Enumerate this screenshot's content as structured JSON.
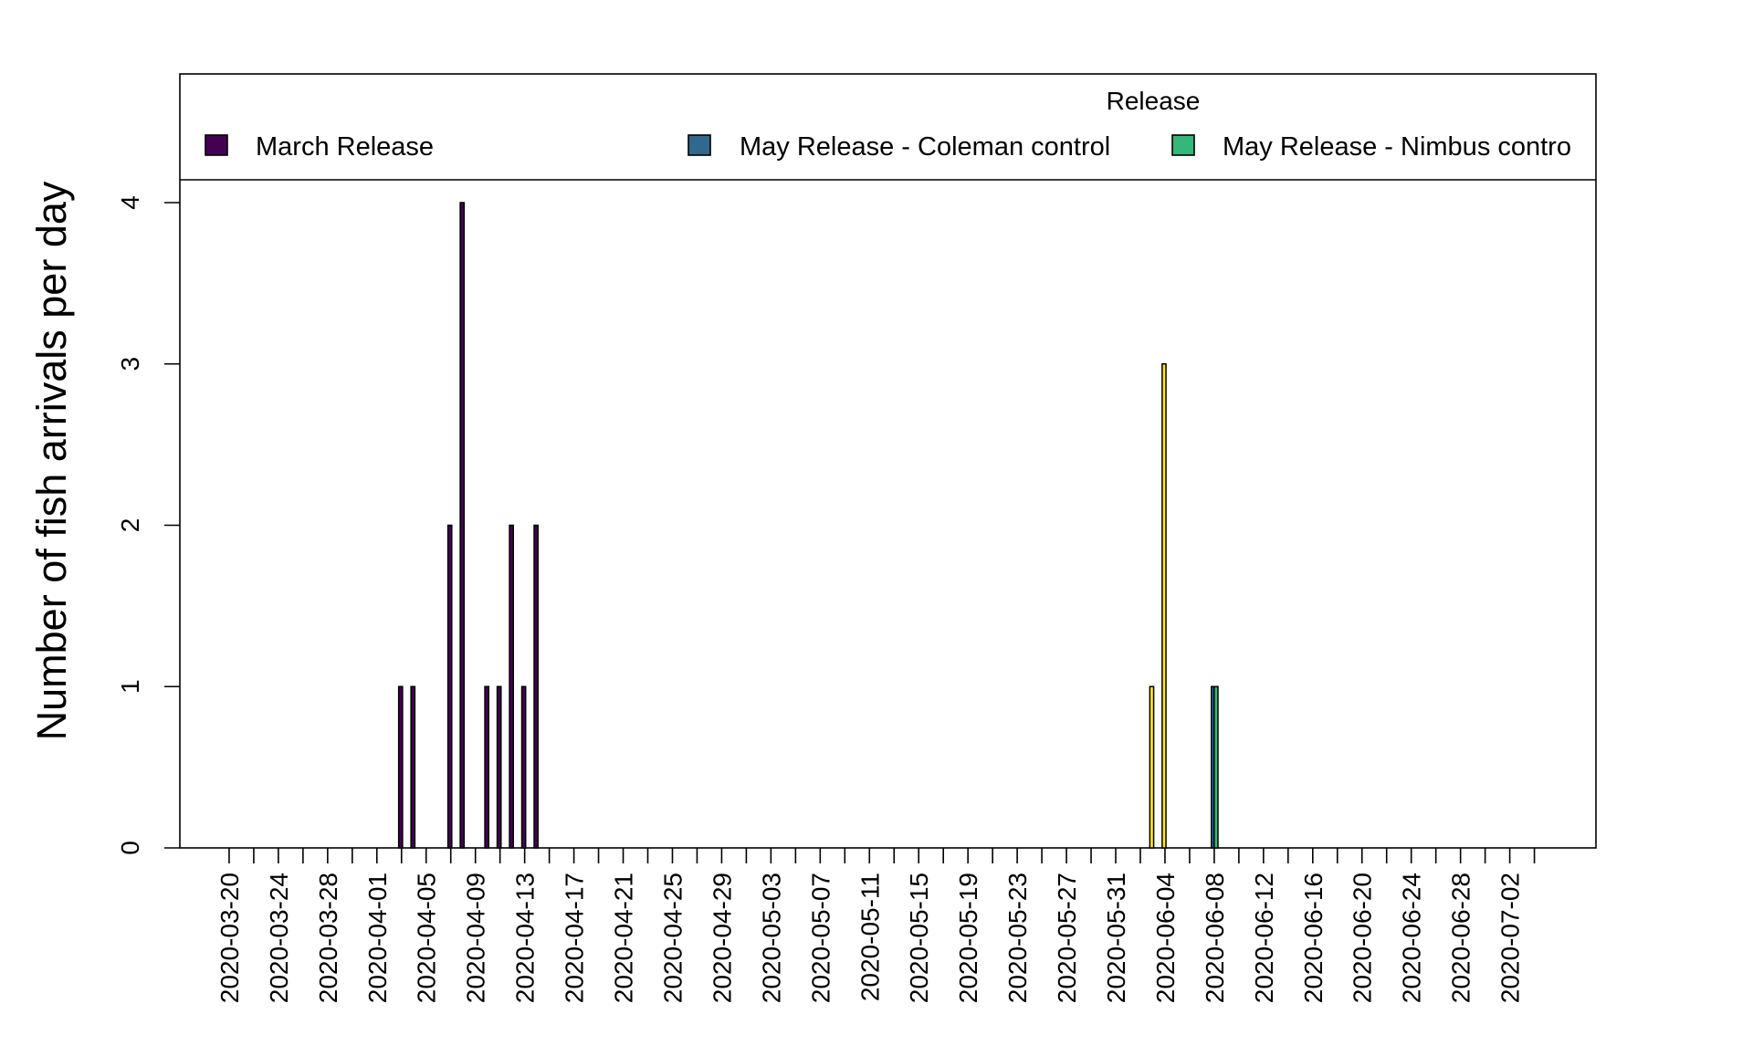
{
  "chart_data": {
    "type": "bar",
    "title": "",
    "xlabel": "",
    "ylabel": "Number of fish arrivals per day",
    "ylim": [
      0,
      4.9
    ],
    "yticks": [
      0,
      1,
      2,
      3,
      4
    ],
    "xlim": [
      "2020-03-16",
      "2020-07-09"
    ],
    "x_tick_labels": [
      "2020-03-20",
      "2020-03-24",
      "2020-03-28",
      "2020-04-01",
      "2020-04-05",
      "2020-04-09",
      "2020-04-13",
      "2020-04-17",
      "2020-04-21",
      "2020-04-25",
      "2020-04-29",
      "2020-05-03",
      "2020-05-07",
      "2020-05-11",
      "2020-05-15",
      "2020-05-19",
      "2020-05-23",
      "2020-05-27",
      "2020-05-31",
      "2020-06-04",
      "2020-06-08",
      "2020-06-12",
      "2020-06-16",
      "2020-06-20",
      "2020-06-24",
      "2020-06-28",
      "2020-07-02"
    ],
    "grid": false,
    "legend": {
      "title": "Release",
      "placement": "top",
      "entries": [
        "March Release",
        "May Release - Coleman control",
        "May Release - Nimbus contro"
      ]
    },
    "series": [
      {
        "name": "March Release",
        "color": "#440154",
        "points": [
          {
            "date": "2020-04-03",
            "value": 1
          },
          {
            "date": "2020-04-04",
            "value": 1
          },
          {
            "date": "2020-04-07",
            "value": 2
          },
          {
            "date": "2020-04-08",
            "value": 4
          },
          {
            "date": "2020-04-10",
            "value": 1
          },
          {
            "date": "2020-04-11",
            "value": 1
          },
          {
            "date": "2020-04-12",
            "value": 2
          },
          {
            "date": "2020-04-13",
            "value": 1
          },
          {
            "date": "2020-04-14",
            "value": 2
          }
        ]
      },
      {
        "name": "May Release - Coleman control",
        "color": "#31688E",
        "points": [
          {
            "date": "2020-06-08",
            "value": 1
          }
        ]
      },
      {
        "name": "May Release - Nimbus contro",
        "color": "#35B779",
        "points": [
          {
            "date": "2020-06-08",
            "value": 1
          }
        ]
      },
      {
        "name": "",
        "color": "#FDE725",
        "points": [
          {
            "date": "2020-06-03",
            "value": 1
          },
          {
            "date": "2020-06-04",
            "value": 3
          }
        ]
      }
    ]
  }
}
